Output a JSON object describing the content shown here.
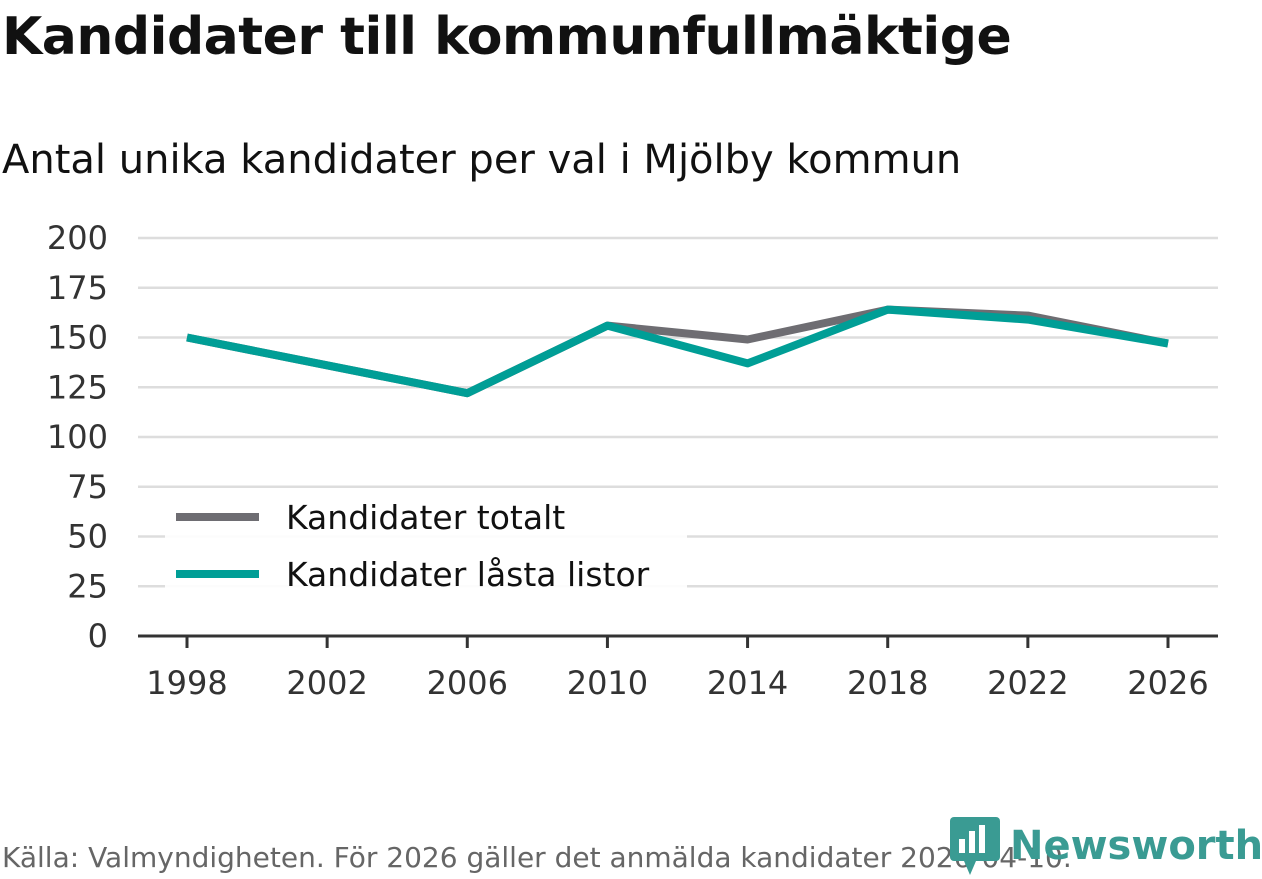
{
  "header": {
    "title": "Kandidater till kommunfullmäktige",
    "subtitle": "Antal unika kandidater per val i Mjölby kommun"
  },
  "footer": {
    "source": "Källa: Valmyndigheten. För 2026 gäller det anmälda kandidater 2026-04-10.",
    "logo_text": "Newsworthy"
  },
  "colors": {
    "total": "#6e6d72",
    "locked": "#009e96",
    "grid": "#dddddd",
    "axis": "#333333",
    "logo": "#3a9b93"
  },
  "chart_data": {
    "type": "line",
    "title": "Kandidater till kommunfullmäktige",
    "subtitle": "Antal unika kandidater per val i Mjölby kommun",
    "xlabel": "",
    "ylabel": "",
    "x": [
      1998,
      2002,
      2006,
      2010,
      2014,
      2018,
      2022,
      2026
    ],
    "ylim": [
      0,
      200
    ],
    "yticks": [
      0,
      25,
      50,
      75,
      100,
      125,
      150,
      175,
      200
    ],
    "xticks": [
      1998,
      2002,
      2006,
      2010,
      2014,
      2018,
      2022,
      2026
    ],
    "grid": true,
    "legend_position": "bottom-left",
    "series": [
      {
        "name": "Kandidater totalt",
        "color": "#6e6d72",
        "values": [
          150,
          null,
          122,
          156,
          149,
          164,
          161,
          147
        ]
      },
      {
        "name": "Kandidater låsta listor",
        "color": "#009e96",
        "values": [
          150,
          null,
          122,
          156,
          137,
          164,
          159,
          147
        ]
      }
    ]
  }
}
